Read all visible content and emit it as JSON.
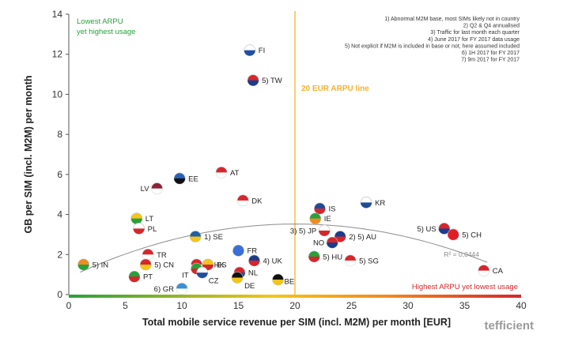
{
  "chart_data": {
    "type": "scatter",
    "xlabel": "Total mobile service revenue per SIM (incl. M2M) per month [EUR]",
    "ylabel": "GB per SIM (incl. M2M) per month",
    "xlim": [
      0,
      40
    ],
    "ylim": [
      0,
      14
    ],
    "xticks": [
      0,
      5,
      10,
      15,
      20,
      25,
      30,
      35,
      40
    ],
    "yticks": [
      0,
      2,
      4,
      6,
      8,
      10,
      12,
      14
    ],
    "grid": false,
    "points": [
      {
        "label": "FI",
        "x": 16.0,
        "y": 12.2,
        "colors": [
          "#ffffff",
          "#1f4fa0"
        ]
      },
      {
        "label": "5) TW",
        "x": 16.3,
        "y": 10.7,
        "colors": [
          "#d7262b",
          "#1a3c8f"
        ]
      },
      {
        "label": "AT",
        "x": 13.5,
        "y": 6.1,
        "colors": [
          "#d7262b",
          "#ffffff"
        ]
      },
      {
        "label": "EE",
        "x": 9.8,
        "y": 5.8,
        "colors": [
          "#2a62b8",
          "#111111"
        ]
      },
      {
        "label": "LV",
        "x": 7.8,
        "y": 5.3,
        "colors": [
          "#8e2235",
          "#ffffff"
        ]
      },
      {
        "label": "DK",
        "x": 15.4,
        "y": 4.7,
        "colors": [
          "#d7262b",
          "#ffffff"
        ]
      },
      {
        "label": "KR",
        "x": 26.3,
        "y": 4.6,
        "colors": [
          "#ffffff",
          "#1d4c9a"
        ]
      },
      {
        "label": "IS",
        "x": 22.2,
        "y": 4.3,
        "colors": [
          "#1d4c9a",
          "#d7262b"
        ]
      },
      {
        "label": "IE",
        "x": 21.8,
        "y": 3.8,
        "colors": [
          "#27a23b",
          "#f28b1f"
        ]
      },
      {
        "label": "LT",
        "x": 6.0,
        "y": 3.8,
        "colors": [
          "#f5c518",
          "#27a23b"
        ]
      },
      {
        "label": "PL",
        "x": 6.2,
        "y": 3.3,
        "colors": [
          "#ffffff",
          "#d7262b"
        ]
      },
      {
        "label": "5) US",
        "x": 33.2,
        "y": 3.3,
        "colors": [
          "#d7262b",
          "#1d3c8f"
        ]
      },
      {
        "label": "3) 5) JP",
        "x": 22.6,
        "y": 3.2,
        "colors": [
          "#ffffff",
          "#d7262b"
        ]
      },
      {
        "label": "5) CH",
        "x": 34.0,
        "y": 3.0,
        "colors": [
          "#e21d25",
          "#e21d25"
        ]
      },
      {
        "label": "2) 5) AU",
        "x": 24.0,
        "y": 2.9,
        "colors": [
          "#1a3c8f",
          "#d7262b"
        ]
      },
      {
        "label": "1) SE",
        "x": 11.2,
        "y": 2.9,
        "colors": [
          "#1f5fa8",
          "#f5c518"
        ]
      },
      {
        "label": "NO",
        "x": 23.3,
        "y": 2.6,
        "colors": [
          "#d7262b",
          "#1a3c8f"
        ]
      },
      {
        "label": "FR",
        "x": 15.0,
        "y": 2.2,
        "colors": [
          "#3a6fd8",
          "#3a6fd8"
        ]
      },
      {
        "label": "TR",
        "x": 7.0,
        "y": 2.0,
        "colors": [
          "#d7262b",
          "#ffffff"
        ]
      },
      {
        "label": "5) HU",
        "x": 21.7,
        "y": 1.9,
        "colors": [
          "#27a23b",
          "#d7262b"
        ]
      },
      {
        "label": "5) SG",
        "x": 24.9,
        "y": 1.7,
        "colors": [
          "#d7262b",
          "#ffffff"
        ]
      },
      {
        "label": "4) UK",
        "x": 16.4,
        "y": 1.7,
        "colors": [
          "#1a3c8f",
          "#d7262b"
        ]
      },
      {
        "label": "5) HK",
        "x": 11.3,
        "y": 1.5,
        "colors": [
          "#d7262b",
          "#ffffff"
        ]
      },
      {
        "label": "5) CN",
        "x": 6.8,
        "y": 1.5,
        "colors": [
          "#d7262b",
          "#f5c518"
        ]
      },
      {
        "label": "ES",
        "x": 12.3,
        "y": 1.5,
        "colors": [
          "#f5c518",
          "#d7262b"
        ]
      },
      {
        "label": "5) IN",
        "x": 1.3,
        "y": 1.5,
        "colors": [
          "#f28b1f",
          "#27a23b"
        ]
      },
      {
        "label": "IT",
        "x": 11.3,
        "y": 1.3,
        "colors": [
          "#27a23b",
          "#d7262b"
        ]
      },
      {
        "label": "NL",
        "x": 15.1,
        "y": 1.1,
        "colors": [
          "#d7262b",
          "#1f4fa0"
        ]
      },
      {
        "label": "CZ",
        "x": 11.8,
        "y": 1.1,
        "colors": [
          "#ffffff",
          "#1f4fa0"
        ]
      },
      {
        "label": "PT",
        "x": 5.8,
        "y": 0.9,
        "colors": [
          "#27a23b",
          "#d7262b"
        ]
      },
      {
        "label": "DE",
        "x": 14.9,
        "y": 0.85,
        "colors": [
          "#111111",
          "#f5c518"
        ]
      },
      {
        "label": "BE",
        "x": 18.5,
        "y": 0.75,
        "colors": [
          "#111111",
          "#f5c518"
        ]
      },
      {
        "label": "CA",
        "x": 36.7,
        "y": 1.2,
        "colors": [
          "#d7262b",
          "#ffffff"
        ]
      },
      {
        "label": "6) GR",
        "x": 10.0,
        "y": 0.3,
        "colors": [
          "#3a8fd8",
          "#ffffff"
        ]
      }
    ],
    "trendline": {
      "type": "polynomial",
      "r2_label": "R² = 0,0444",
      "x_range": [
        1,
        37
      ],
      "coefficients": [
        0.86,
        0.266,
        -0.00664
      ]
    },
    "reference_line": {
      "x": 20,
      "label": "20 EUR ARPU line",
      "color": "#f5b233"
    },
    "annotations": {
      "top_left": [
        "Lowest ARPU",
        "yet highest usage"
      ],
      "bottom_right": "Highest ARPU yet lowest usage",
      "notes": [
        "1) Abnormal M2M base, most SIMs likely not in country",
        "2) Q2 & Q4 annualised",
        "3) Traffic for last month each quarter",
        "4) June 2017 for FY 2017 data usage",
        "5) Not explicit if M2M is included in base or not; here assumed included",
        "6) 1H 2017 for FY 2017",
        "7) 9m 2017 for FY 2017"
      ]
    },
    "brand": "tefficient",
    "colors": {
      "low": "#27a23b",
      "high": "#d7262b",
      "ref": "#f5b233"
    }
  }
}
